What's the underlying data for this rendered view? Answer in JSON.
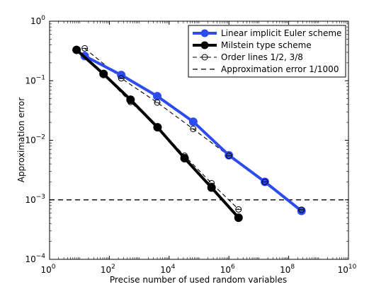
{
  "chart_data": {
    "type": "line",
    "xscale": "log",
    "yscale": "log",
    "xlim": [
      1,
      10000000000
    ],
    "ylim": [
      0.0001,
      1
    ],
    "xlabel": "Precise number of used random variables",
    "ylabel": "Approximation error",
    "grid": false,
    "legend_position": "top-right",
    "x_ticks": [
      {
        "value": 1,
        "base": "10",
        "exp": "0"
      },
      {
        "value": 100,
        "base": "10",
        "exp": "2"
      },
      {
        "value": 10000,
        "base": "10",
        "exp": "4"
      },
      {
        "value": 1000000,
        "base": "10",
        "exp": "6"
      },
      {
        "value": 100000000,
        "base": "10",
        "exp": "8"
      },
      {
        "value": 10000000000,
        "base": "10",
        "exp": "10"
      }
    ],
    "y_ticks": [
      {
        "value": 0.0001,
        "base": "10",
        "exp": "−4"
      },
      {
        "value": 0.001,
        "base": "10",
        "exp": "−3"
      },
      {
        "value": 0.01,
        "base": "10",
        "exp": "−2"
      },
      {
        "value": 0.1,
        "base": "10",
        "exp": "−1"
      },
      {
        "value": 1,
        "base": "10",
        "exp": "0"
      }
    ],
    "series": [
      {
        "name": "Linear implicit Euler scheme",
        "color": "#2d4cf0",
        "style": "solid-filled-markers",
        "x": [
          15,
          250,
          4000,
          64000,
          1000000,
          16000000,
          268000000
        ],
        "y": [
          0.26,
          0.125,
          0.055,
          0.0205,
          0.0056,
          0.002,
          0.00065
        ]
      },
      {
        "name": "Milstein type scheme",
        "color": "#000000",
        "style": "solid-filled-markers",
        "x": [
          8,
          64,
          512,
          4096,
          32768,
          262144,
          2097152
        ],
        "y": [
          0.33,
          0.13,
          0.048,
          0.0165,
          0.005,
          0.0016,
          0.0005
        ]
      },
      {
        "name": "Order lines 1/2, 3/8",
        "color": "#000000",
        "style": "dashed-open-markers",
        "segments": [
          {
            "x": [
              15,
              250,
              4000,
              64000,
              1000000,
              16000000,
              268000000
            ],
            "y": [
              0.35,
              0.11,
              0.043,
              0.0155,
              0.0055,
              0.002,
              0.00068
            ]
          },
          {
            "x": [
              8,
              64,
              512,
              4096,
              32768,
              262144,
              2097152
            ],
            "y": [
              0.33,
              0.125,
              0.044,
              0.0165,
              0.0055,
              0.0019,
              0.00069
            ]
          }
        ]
      },
      {
        "name": "Approximation error 1/1000",
        "color": "#000000",
        "style": "dashed-line",
        "x": [
          1,
          10000000000
        ],
        "y": [
          0.001,
          0.001
        ]
      }
    ]
  }
}
